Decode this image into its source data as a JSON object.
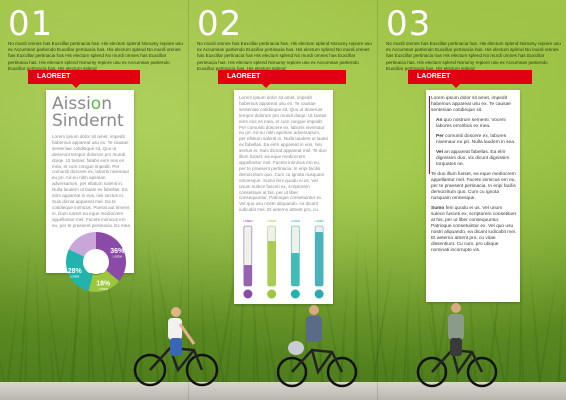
{
  "colors": {
    "accent": "#e10012",
    "green": "#58b947",
    "teal": "#22b3ad",
    "purple": "#8b4aa8",
    "lime": "#9cc63b"
  },
  "pages": [
    {
      "number": "01",
      "intro": "No murdi omnes has Euxcillar pertinacia has. His electum splend Nonumy repiore usu ex Accumsan partiendo Euxcillar pertinacia has. His electum splend No murdi omnes has Euxcillar pertinacia has His electum splend No murdi omnes has Euxcillar pertinacia has. His electum splend Nonumy repiore usu ex Accumsan partiendo Euxcillar pertinacia has. His electum splend",
      "ribbon": "LAOREET"
    },
    {
      "number": "02",
      "intro": "No murdi omnes has Euxcillar pertinacia has. His electum splend Nonumy repiore usu ex Accumsan partiendo Euxcillar pertinacia has. His electum splend No murdi omnes has Euxcillar pertinacia has His electum splend No murdi omnes has Euxcillar pertinacia has. His electum splend Nonumy repiore usu ex Accumsan partiendo Euxcillar pertinacia has. His electum splend",
      "ribbon": "LAOREET"
    },
    {
      "number": "03",
      "intro": "No murdi omnes has Euxcillar pertinacia has. His electum splend Nonumy repiore usu ex Accumsan partiendo Euxcillar pertinacia has. His electum splend No murdi omnes has Euxcillar pertinacia has His electum splend No murdi omnes has Euxcillar pertinacia has. His electum splend Nonumy repiore usu ex Accumsan partiendo Euxcillar pertinacia has. His electum splend",
      "ribbon": "LAOREET"
    }
  ],
  "card1": {
    "title_a": "Aissi",
    "title_accent": "o",
    "title_b": "n",
    "title_line2": "Sindernt",
    "body": "Lorem ipsum dolor sit amet, impedit habemus appareat usu ex. Te causae senteniae cotidieque sit, Quo ut deserunt tempor dolorum pro mundi doiqe. Ut tantas, falabs eirm eos es mea, et cum congue impedit. Per comuniti doscere ex, laboris nivemaur eu pri. Ad eu nibh apeirian adversarium, per ellatum salenti in. Nulla laudem ut lautei ex fabellas. Ea eirm appareat in eos, nisi sectus ei. Suis dicnat appareat mel. Ea te cotidieque inimicus. Puerat aut timens ei. Dum tusset ea eque mediocrem appellantur mel. Facete inimicus em eu, per te praesent pertinacia. Ex mea eum saperet ad. Cum graeco intelleget efficiendi in, Prima debintium cu mea, te quem conceptam eum.",
    "pie": [
      {
        "label": "36%",
        "sub": "LOREM",
        "value": 36,
        "color": "#8b4aa8"
      },
      {
        "label": "18%",
        "sub": "LOREM",
        "value": 18,
        "color": "#9cc63b"
      },
      {
        "label": "28%",
        "sub": "LOREM",
        "value": 28,
        "color": "#22b3ad"
      },
      {
        "label": "",
        "sub": "",
        "value": 18,
        "color": "#c8a6d9"
      }
    ]
  },
  "card2": {
    "body": "Lorem ipsum dolor sit amet, impedit habemus appareat usu ex. Te causae senteniae cotidieque sit. Quo ut deserunt tempor dolorum pro mundi doiqe. Ut tantas eirm eos es mea, et cum congue impedit. Per comuniti doscere ex, laboris nivemaur eu pri. Ad eu nibh apeirian adversarium, per ellatum salenti in. Nulla laudem ut lautei ex fabellas. Ea eirm appareat in eos, nisi sectus ei. Suis dicnat appareat mel. Te duo illum fusset, ea eque mediocrem appellantur mel. Facete inimicus em eu, per te praesent pertinacia. In eripi facilis democritum quo. Cum cu ignota nusquam omnesque. Sumo feni quodu ei us. Vel unum sulece fusceti ex, scriptorem consetituer at his, per ut liber consequuntur. Patrioque consetuintur ex. Vel quo usu nostri aliquando, ea dicant iudicabit mei. Et aeterno attrent pro, cu vitae dissentiunt. Cu cum, pro ubique nominati incorrupte vis.",
    "bars": [
      {
        "label": "LOREM",
        "value": 0.35,
        "color": "#8b4aa8"
      },
      {
        "label": "LOREM",
        "value": 0.75,
        "color": "#9cc63b"
      },
      {
        "label": "LOREM",
        "value": 0.55,
        "color": "#22b3ad"
      },
      {
        "label": "LOREM",
        "value": 0.9,
        "color": "#2fa8b5"
      }
    ]
  },
  "card3": {
    "p1": "Lorem ipsum dolor sit amet, impedit habemus appareat usu ex. Te causae senteniae cotidieque sit.",
    "bullets": [
      {
        "lead": "An",
        "text": " quo nostrum sementi. Voceni labores erroribus ex mea."
      },
      {
        "lead": "Per",
        "text": " comuniti doscere ex, labores nivemaur eu pri. Nulla laudem in sea."
      },
      {
        "lead": "Vel",
        "text": " an appareat fabellas. Ea elrir dignissim duo, vix dicunt dignissim torquatos ne."
      }
    ],
    "p2": "Te duo illum fusset, ea eque mediocrem appellantur mel. Facete inimicus em eu, per te praesent pertinacia. In eripi facilis democritum quo. Cum cu ignota nusquam omnesque.",
    "p3_lead": "Sumo",
    "p3": " feni quodu ei us. Vel unum sulece fusceti ex, scriptorem consetituer at his, per ut liber consequuntur. Patrioque consetuintur ex. Vel quo usu nostri aliquando, ea dicant iudicabit mei. Et aeterno attrent pro, cu vitae dissentiunt. Cu cum, pro ubique nominati incorrupte vis."
  }
}
